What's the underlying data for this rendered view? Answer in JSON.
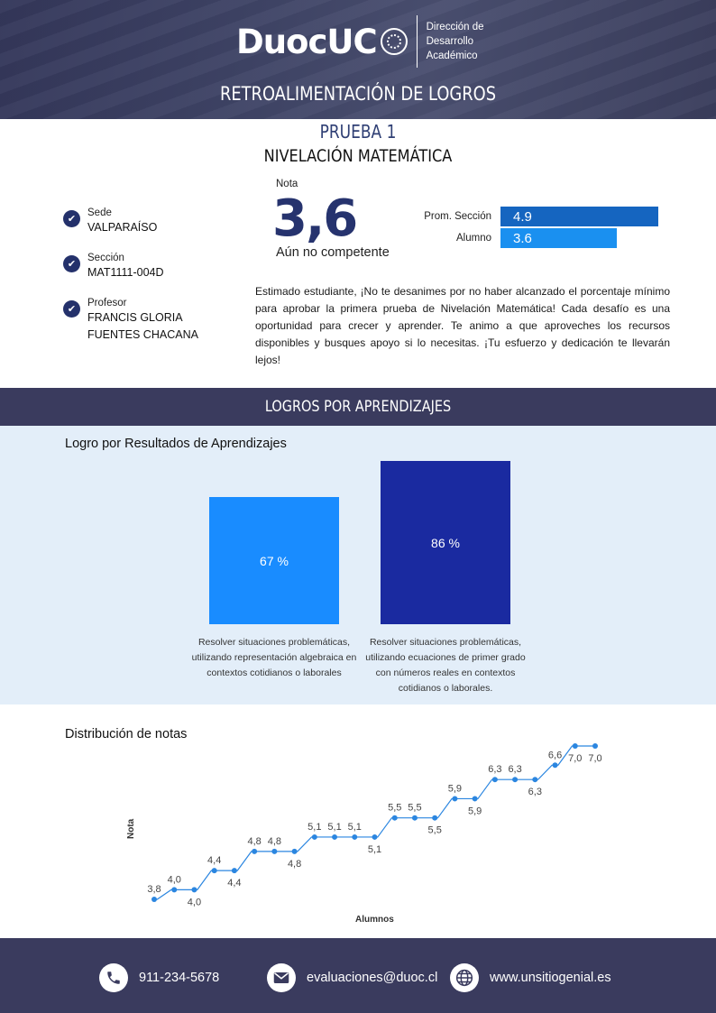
{
  "header": {
    "logo_text": "DuocUC",
    "department": [
      "Dirección de",
      "Desarrollo",
      "Académico"
    ],
    "report_title": "RETROALIMENTACIÓN DE LOGROS"
  },
  "test": {
    "number": "PRUEBA 1",
    "name": "NIVELACIÓN MATEMÁTICA"
  },
  "student_info": [
    {
      "label": "Sede",
      "value": "VALPARAÍSO",
      "icon": "check-circle-icon"
    },
    {
      "label": "Sección",
      "value": "MAT1111-004D",
      "icon": "check-circle-icon"
    },
    {
      "label": "Profesor",
      "value": "FRANCIS GLORIA FUENTES CHACANA",
      "icon": "check-circle-icon"
    }
  ],
  "grade": {
    "label": "Nota",
    "value": "3,6",
    "status": "Aún no competente"
  },
  "comparison": {
    "rows": [
      {
        "label": "Prom. Sección",
        "value": "4.9",
        "color": "#1565c0"
      },
      {
        "label": "Alumno",
        "value": "3.6",
        "color": "#1a90f0"
      }
    ],
    "scale_max": 7.0
  },
  "message": "Estimado estudiante, ¡No te desanimes por no haber alcanzado el porcentaje mínimo para aprobar la primera prueba de Nivelación Matemática! Cada desafío es una oportunidad para crecer y aprender. Te animo a que aproveches los recursos disponibles y busques apoyo si lo necesitas. ¡Tu esfuerzo y dedicación te llevarán lejos!",
  "logros": {
    "section_title": "LOGROS POR APRENDIZAJES",
    "subtitle": "Logro por Resultados de Aprendizajes",
    "chart_data": {
      "type": "bar",
      "categories": [
        "Resolver situaciones problemáticas, utilizando representación algebraica en contextos cotidianos o laborales",
        "Resolver situaciones problemáticas, utilizando ecuaciones de primer grado con números reales en contextos cotidianos o laborales."
      ],
      "values": [
        67,
        86
      ],
      "value_labels": [
        "67 %",
        "86 %"
      ],
      "colors": [
        "#198cff",
        "#1a2aa0"
      ],
      "unit": "%"
    }
  },
  "distribution": {
    "title": "Distribución de notas",
    "chart_data": {
      "type": "line",
      "xlabel": "Alumnos",
      "ylabel": "Nota",
      "values": [
        3.8,
        4.0,
        4.0,
        4.4,
        4.4,
        4.8,
        4.8,
        4.8,
        5.1,
        5.1,
        5.1,
        5.1,
        5.5,
        5.5,
        5.5,
        5.9,
        5.9,
        6.3,
        6.3,
        6.3,
        6.6,
        7.0,
        7.0
      ],
      "labels": [
        "3,8",
        "4,0",
        "4,0",
        "4,4",
        "4,4",
        "4,8",
        "4,8",
        "4,8",
        "5,1",
        "5,1",
        "5,1",
        "5,1",
        "5,5",
        "5,5",
        "5,5",
        "5,9",
        "5,9",
        "6,3",
        "6,3",
        "6,3",
        "6,6",
        "7,0",
        "7,0"
      ],
      "label_position": [
        "above",
        "above",
        "below",
        "above",
        "below",
        "above",
        "above",
        "below",
        "above",
        "above",
        "above",
        "below",
        "above",
        "above",
        "below",
        "above",
        "below",
        "above",
        "above",
        "below",
        "above",
        "below",
        "below"
      ],
      "color": "#2b86e0"
    }
  },
  "footer": {
    "contacts": [
      {
        "icon": "phone-icon",
        "text": "911-234-5678"
      },
      {
        "icon": "mail-icon",
        "text": "evaluaciones@duoc.cl"
      },
      {
        "icon": "globe-icon",
        "text": "www.unsitiogenial.es"
      }
    ]
  }
}
